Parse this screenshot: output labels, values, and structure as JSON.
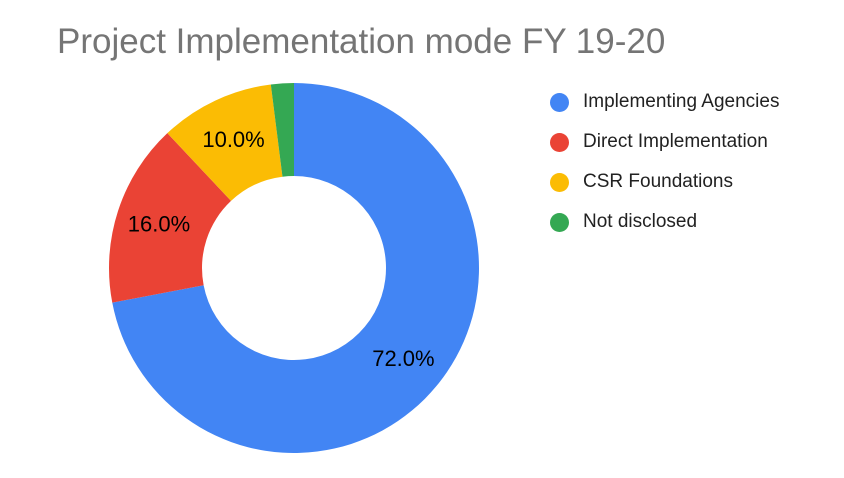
{
  "chart_data": {
    "type": "pie",
    "donut": true,
    "title": "Project Implementation mode FY 19-20",
    "legend_position": "right",
    "slices": [
      {
        "name": "Implementing Agencies",
        "value": 72.0,
        "label": "72.0%",
        "color": "#4285F4"
      },
      {
        "name": "Direct Implementation",
        "value": 16.0,
        "label": "16.0%",
        "color": "#EA4335"
      },
      {
        "name": "CSR Foundations",
        "value": 10.0,
        "label": "10.0%",
        "color": "#FBBC04"
      },
      {
        "name": "Not disclosed",
        "value": 2.0,
        "label": "",
        "color": "#34A853"
      }
    ]
  }
}
